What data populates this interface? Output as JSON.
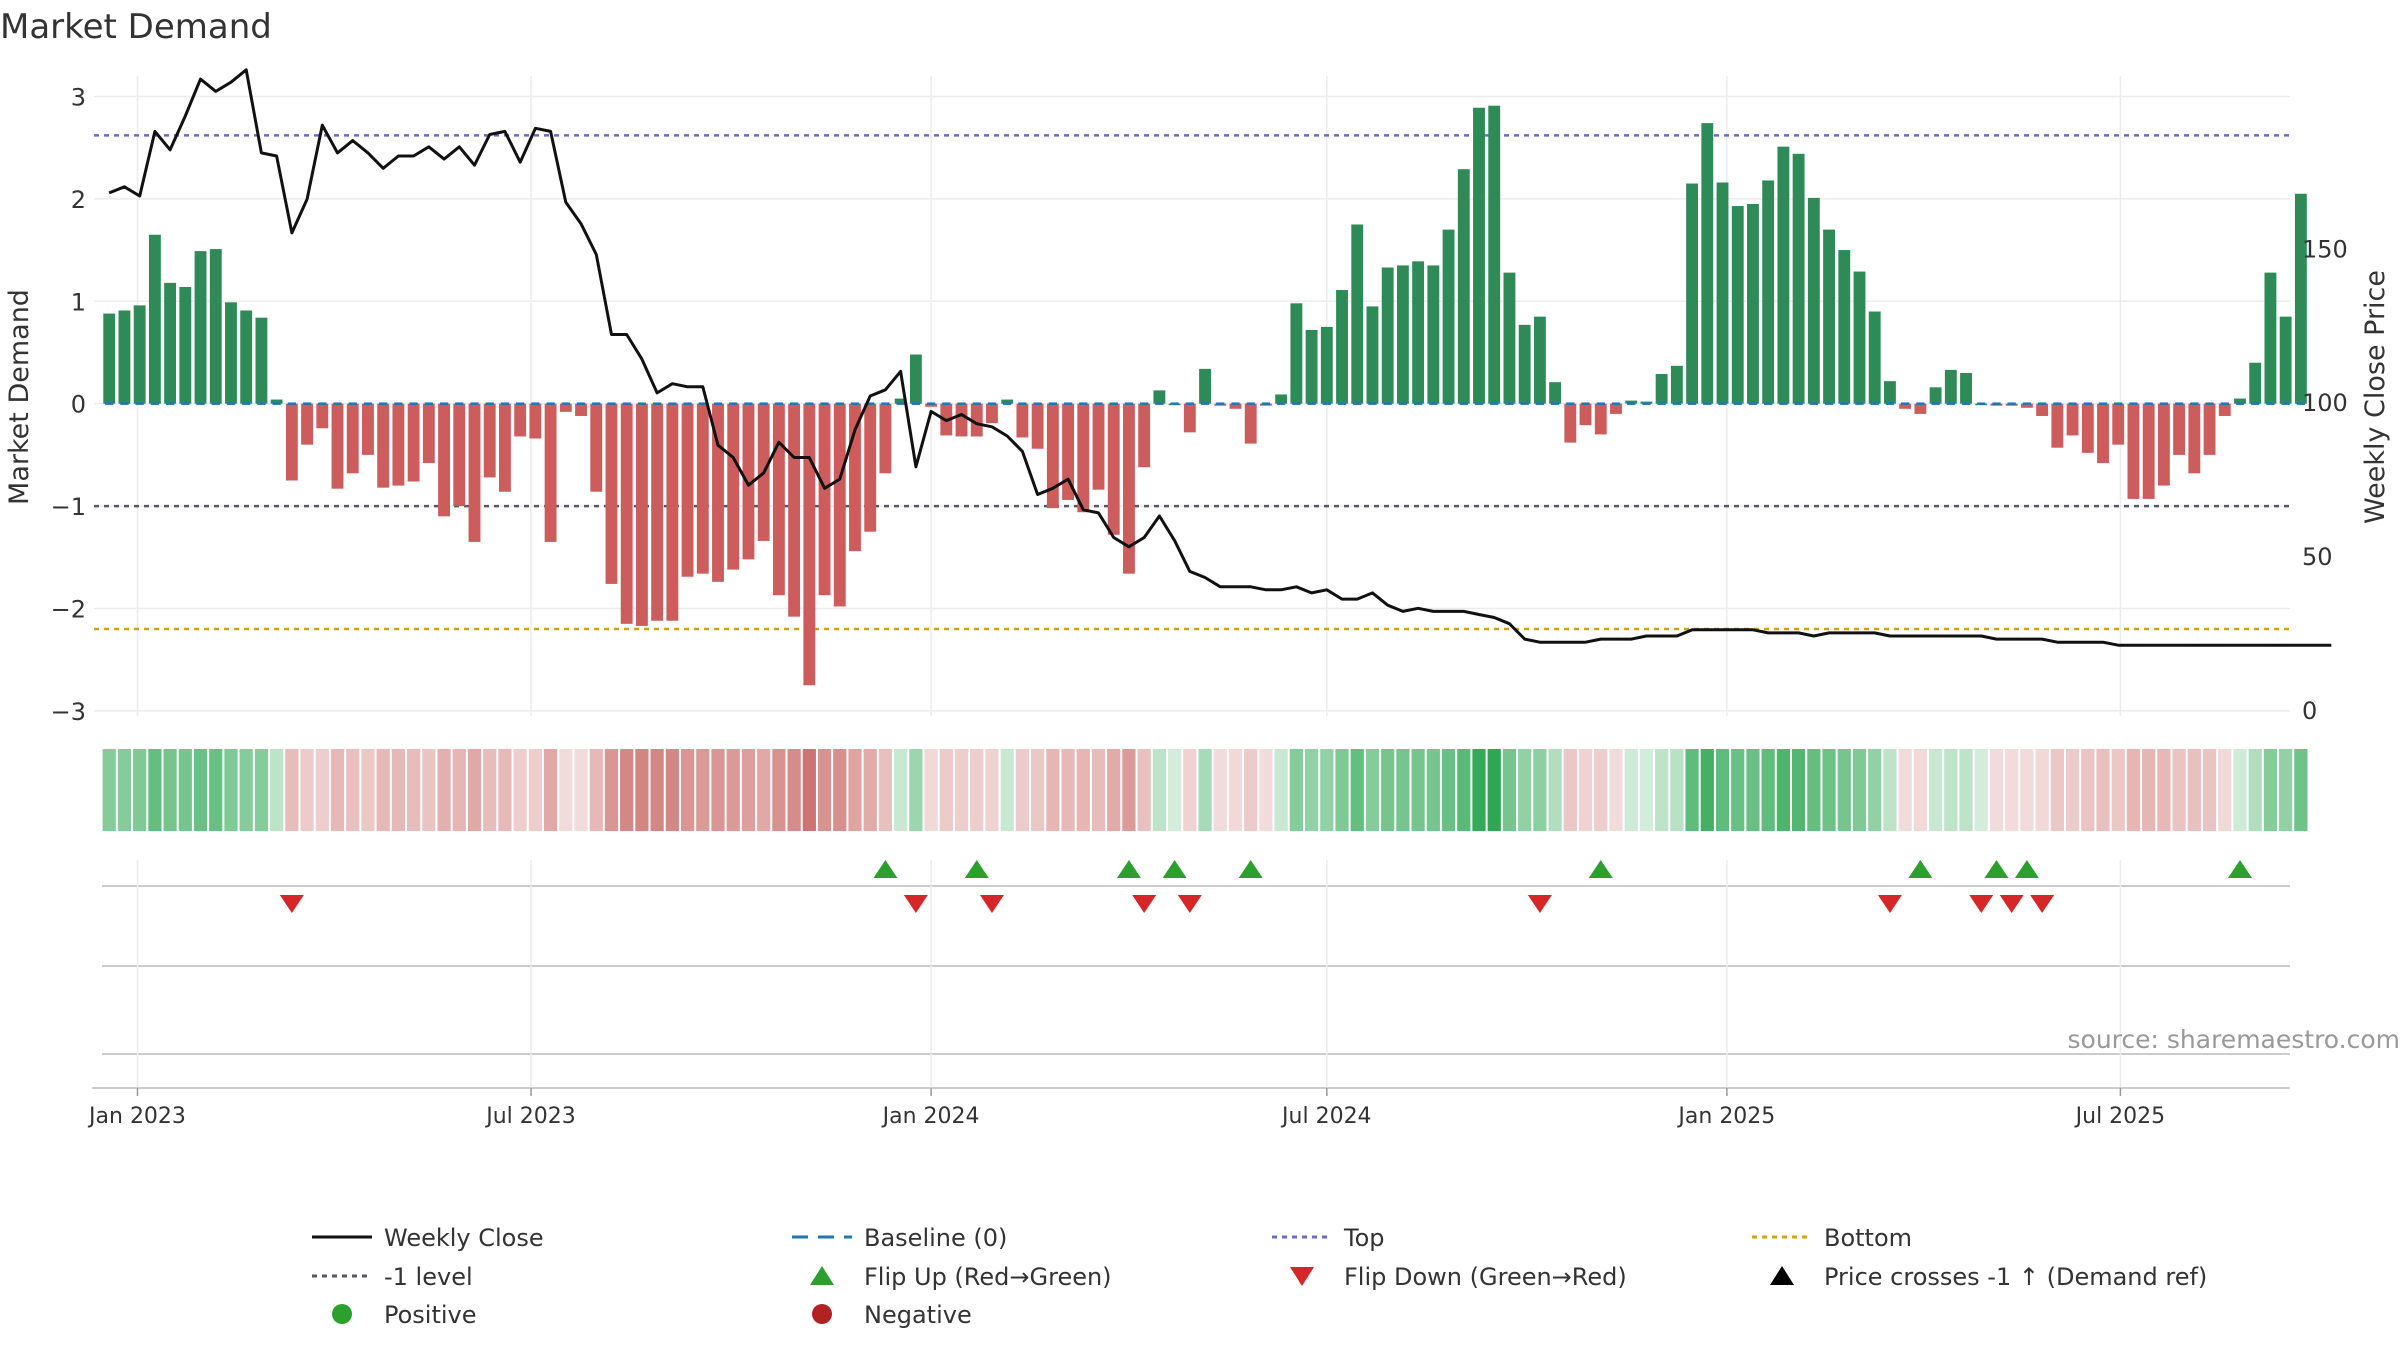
{
  "chart_data": {
    "type": "bar",
    "title": "Market Demand",
    "ylabel": "Market Demand",
    "y2label": "Weekly Close Price",
    "ylim": [
      -3.05,
      3.2
    ],
    "y2lim": [
      -2,
      206
    ],
    "yticks": [
      3,
      2,
      1,
      0,
      -1,
      -2,
      -3
    ],
    "yticklabels": [
      "3",
      "2",
      "1",
      "0",
      "−1",
      "−2",
      "−3"
    ],
    "y2ticks": [
      150,
      100,
      50,
      0
    ],
    "y2ticklabels": [
      "150",
      "100",
      "50",
      "0"
    ],
    "start_date": "2022-12-19",
    "week_days": 7,
    "x_range_days": [
      -7,
      1003
    ],
    "xticks": [
      {
        "label": "Jan 2023",
        "day": 13
      },
      {
        "label": "Jul 2023",
        "day": 194
      },
      {
        "label": "Jan 2024",
        "day": 378
      },
      {
        "label": "Jul 2024",
        "day": 560
      },
      {
        "label": "Jan 2025",
        "day": 744
      },
      {
        "label": "Jul 2025",
        "day": 925
      }
    ],
    "reference_lines": {
      "top": 2.62,
      "minus_one": -1.0,
      "bottom": -2.2,
      "baseline": 0
    },
    "colors": {
      "positive_bar": "#2e8b57",
      "negative_bar": "#cd5c5c",
      "price_line": "#111111",
      "baseline": "#1f77b4",
      "top_line": "#6a6ac8",
      "minus_one_line": "#555566",
      "bottom_line": "#d4a017",
      "flip_up": "#2ca02c",
      "flip_down": "#d62728",
      "positive_dot": "#2ca02c",
      "negative_dot": "#b22222",
      "cross_marker": "#000000",
      "source_text": "#999999"
    },
    "demand": [
      0.88,
      0.91,
      0.96,
      1.65,
      1.18,
      1.14,
      1.49,
      1.51,
      0.99,
      0.91,
      0.84,
      0.04,
      -0.75,
      -0.4,
      -0.24,
      -0.83,
      -0.68,
      -0.5,
      -0.82,
      -0.8,
      -0.76,
      -0.58,
      -1.1,
      -1.0,
      -1.35,
      -0.72,
      -0.86,
      -0.32,
      -0.34,
      -1.35,
      -0.08,
      -0.12,
      -0.86,
      -1.76,
      -2.15,
      -2.17,
      -2.12,
      -2.12,
      -1.69,
      -1.66,
      -1.74,
      -1.62,
      -1.52,
      -1.34,
      -1.87,
      -2.08,
      -2.75,
      -1.87,
      -1.98,
      -1.44,
      -1.25,
      -0.68,
      0.05,
      0.48,
      -0.03,
      -0.31,
      -0.32,
      -0.32,
      -0.19,
      0.04,
      -0.33,
      -0.44,
      -1.02,
      -0.94,
      -1.06,
      -0.84,
      -1.28,
      -1.66,
      -0.62,
      0.13,
      0.0,
      -0.28,
      0.34,
      -0.02,
      -0.05,
      -0.39,
      -0.02,
      0.09,
      0.98,
      0.72,
      0.75,
      1.11,
      1.75,
      0.95,
      1.33,
      1.35,
      1.39,
      1.35,
      1.7,
      2.29,
      2.89,
      2.91,
      1.28,
      0.77,
      0.85,
      0.21,
      -0.38,
      -0.21,
      -0.3,
      -0.1,
      0.03,
      0.02,
      0.29,
      0.37,
      2.15,
      2.74,
      2.16,
      1.93,
      1.95,
      2.18,
      2.51,
      2.44,
      2.01,
      1.7,
      1.5,
      1.29,
      0.9,
      0.22,
      -0.05,
      -0.1,
      0.16,
      0.33,
      0.3,
      0.0,
      -0.02,
      -0.02,
      -0.04,
      -0.12,
      -0.43,
      -0.31,
      -0.48,
      -0.58,
      -0.4,
      -0.93,
      -0.93,
      -0.8,
      -0.5,
      -0.68,
      -0.5,
      -0.12,
      0.05,
      0.4,
      1.28,
      0.85,
      2.05
    ],
    "price": [
      168,
      170,
      167,
      188,
      182,
      193,
      205,
      201,
      204,
      208,
      181,
      180,
      155,
      166,
      190,
      181,
      185,
      181,
      176,
      180,
      180,
      183,
      179,
      183,
      177,
      187,
      188,
      178,
      189,
      188,
      165,
      158,
      148,
      122,
      122,
      114,
      103,
      106,
      105,
      105,
      86,
      82,
      73,
      77,
      87,
      82,
      82,
      72,
      75,
      91,
      102,
      104,
      110,
      79,
      97,
      94,
      96,
      93,
      92,
      89,
      84,
      70,
      72,
      75,
      65,
      64,
      56,
      53,
      56,
      63,
      55,
      45,
      43,
      40,
      40,
      40,
      39,
      39,
      40,
      38,
      39,
      36,
      36,
      38,
      34,
      32,
      33,
      32,
      32,
      32,
      31,
      30,
      28,
      23,
      22,
      22,
      22,
      22,
      23,
      23,
      23,
      24,
      24,
      24,
      26,
      26,
      26,
      26,
      26,
      25,
      25,
      25,
      24,
      25,
      25,
      25,
      25,
      24,
      24,
      24,
      24,
      24,
      24,
      24,
      23,
      23,
      23,
      23,
      22,
      22,
      22,
      22,
      21,
      21,
      21,
      21,
      21,
      21,
      21,
      21,
      21,
      21,
      21,
      21,
      21,
      21,
      21
    ],
    "heat_intensity": [
      0.55,
      0.55,
      0.58,
      0.7,
      0.62,
      0.62,
      0.68,
      0.68,
      0.58,
      0.55,
      0.55,
      0.3,
      0.38,
      0.3,
      0.28,
      0.4,
      0.36,
      0.32,
      0.4,
      0.4,
      0.38,
      0.34,
      0.45,
      0.42,
      0.5,
      0.38,
      0.4,
      0.28,
      0.28,
      0.5,
      0.2,
      0.2,
      0.4,
      0.6,
      0.68,
      0.7,
      0.68,
      0.68,
      0.6,
      0.58,
      0.6,
      0.58,
      0.55,
      0.5,
      0.62,
      0.66,
      0.8,
      0.62,
      0.64,
      0.52,
      0.48,
      0.36,
      0.25,
      0.45,
      0.22,
      0.3,
      0.28,
      0.28,
      0.25,
      0.25,
      0.3,
      0.32,
      0.42,
      0.4,
      0.42,
      0.38,
      0.48,
      0.58,
      0.36,
      0.3,
      0.2,
      0.26,
      0.4,
      0.2,
      0.22,
      0.3,
      0.2,
      0.25,
      0.55,
      0.5,
      0.5,
      0.58,
      0.7,
      0.55,
      0.62,
      0.62,
      0.62,
      0.62,
      0.68,
      0.75,
      0.92,
      0.95,
      0.62,
      0.5,
      0.52,
      0.35,
      0.32,
      0.26,
      0.28,
      0.2,
      0.22,
      0.2,
      0.3,
      0.32,
      0.72,
      0.85,
      0.72,
      0.68,
      0.68,
      0.72,
      0.8,
      0.78,
      0.7,
      0.66,
      0.62,
      0.58,
      0.5,
      0.3,
      0.2,
      0.22,
      0.25,
      0.3,
      0.3,
      0.2,
      0.2,
      0.2,
      0.2,
      0.22,
      0.32,
      0.3,
      0.34,
      0.36,
      0.32,
      0.42,
      0.42,
      0.4,
      0.34,
      0.36,
      0.34,
      0.22,
      0.22,
      0.35,
      0.55,
      0.5,
      0.65
    ],
    "flip_up_weeks": [
      51,
      57,
      67,
      70,
      75,
      98,
      119,
      124,
      126,
      140
    ],
    "flip_down_weeks": [
      12,
      53,
      58,
      68,
      71,
      94,
      117,
      123,
      125,
      127
    ],
    "source": "source: sharemaestro.com",
    "legend": [
      {
        "label": "Weekly Close",
        "style": "solid-line"
      },
      {
        "label": "Baseline (0)",
        "style": "dashed-blue"
      },
      {
        "label": "Top",
        "style": "dotted-purple"
      },
      {
        "label": "Bottom",
        "style": "dotted-orange"
      },
      {
        "label": "-1 level",
        "style": "dotted-gray"
      },
      {
        "label": "Flip Up (Red→Green)",
        "style": "triangle-up-green"
      },
      {
        "label": "Flip Down (Green→Red)",
        "style": "triangle-down-red"
      },
      {
        "label": "Price crosses -1 ↑ (Demand ref)",
        "style": "triangle-up-black"
      },
      {
        "label": "Positive",
        "style": "dot-green"
      },
      {
        "label": "Negative",
        "style": "dot-red"
      }
    ]
  }
}
